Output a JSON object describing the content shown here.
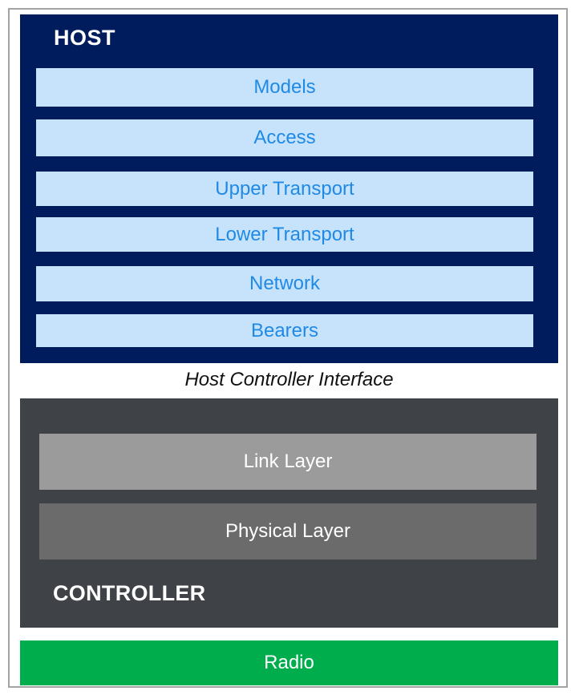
{
  "host": {
    "title": "HOST",
    "layers": [
      "Models",
      "Access",
      "Upper Transport",
      "Lower Transport",
      "Network",
      "Bearers"
    ]
  },
  "interface": {
    "label": "Host Controller Interface"
  },
  "controller": {
    "title": "CONTROLLER",
    "layers": [
      "Link Layer",
      "Physical Layer"
    ]
  },
  "radio": {
    "label": "Radio"
  },
  "colors": {
    "host_bg": "#001c5c",
    "host_layer_bg": "#c7e3fb",
    "host_layer_text": "#1f8ae6",
    "controller_bg": "#3f4247",
    "link_layer_bg": "#9b9b9b",
    "physical_layer_bg": "#6b6b6b",
    "radio_bg": "#00ad4d"
  }
}
